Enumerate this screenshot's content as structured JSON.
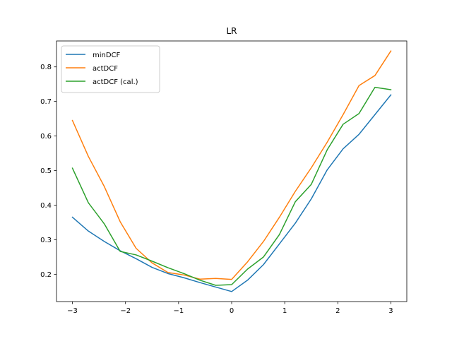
{
  "chart_data": {
    "type": "line",
    "title": "LR",
    "xlabel": "",
    "ylabel": "",
    "xlim": [
      -3.3,
      3.3
    ],
    "ylim": [
      0.121,
      0.875
    ],
    "xticks": [
      -3,
      -2,
      -1,
      0,
      1,
      2,
      3
    ],
    "xtick_labels": [
      "−3",
      "−2",
      "−1",
      "0",
      "1",
      "2",
      "3"
    ],
    "yticks": [
      0.2,
      0.3,
      0.4,
      0.5,
      0.6,
      0.7,
      0.8
    ],
    "ytick_labels": [
      "0.2",
      "0.3",
      "0.4",
      "0.5",
      "0.6",
      "0.7",
      "0.8"
    ],
    "grid": false,
    "legend_position": "top-left",
    "x": [
      -3.0,
      -2.7,
      -2.4,
      -2.1,
      -1.8,
      -1.5,
      -1.2,
      -0.9,
      -0.6,
      -0.3,
      0.0,
      0.3,
      0.6,
      0.9,
      1.2,
      1.5,
      1.8,
      2.1,
      2.4,
      2.7,
      3.0
    ],
    "series": [
      {
        "name": "minDCF",
        "color": "#1f77b4",
        "values": [
          0.365,
          0.325,
          0.295,
          0.268,
          0.245,
          0.22,
          0.202,
          0.19,
          0.176,
          0.163,
          0.15,
          0.183,
          0.228,
          0.288,
          0.348,
          0.418,
          0.502,
          0.563,
          0.605,
          0.662,
          0.719
        ]
      },
      {
        "name": "actDCF",
        "color": "#ff7f0e",
        "values": [
          0.645,
          0.541,
          0.454,
          0.352,
          0.275,
          0.233,
          0.205,
          0.198,
          0.186,
          0.188,
          0.185,
          0.236,
          0.295,
          0.365,
          0.44,
          0.508,
          0.582,
          0.662,
          0.746,
          0.775,
          0.846
        ]
      },
      {
        "name": "actDCF (cal.)",
        "color": "#2ca02c",
        "values": [
          0.507,
          0.407,
          0.346,
          0.266,
          0.256,
          0.238,
          0.219,
          0.202,
          0.183,
          0.168,
          0.17,
          0.215,
          0.25,
          0.315,
          0.41,
          0.46,
          0.56,
          0.634,
          0.665,
          0.741,
          0.734
        ]
      }
    ]
  }
}
